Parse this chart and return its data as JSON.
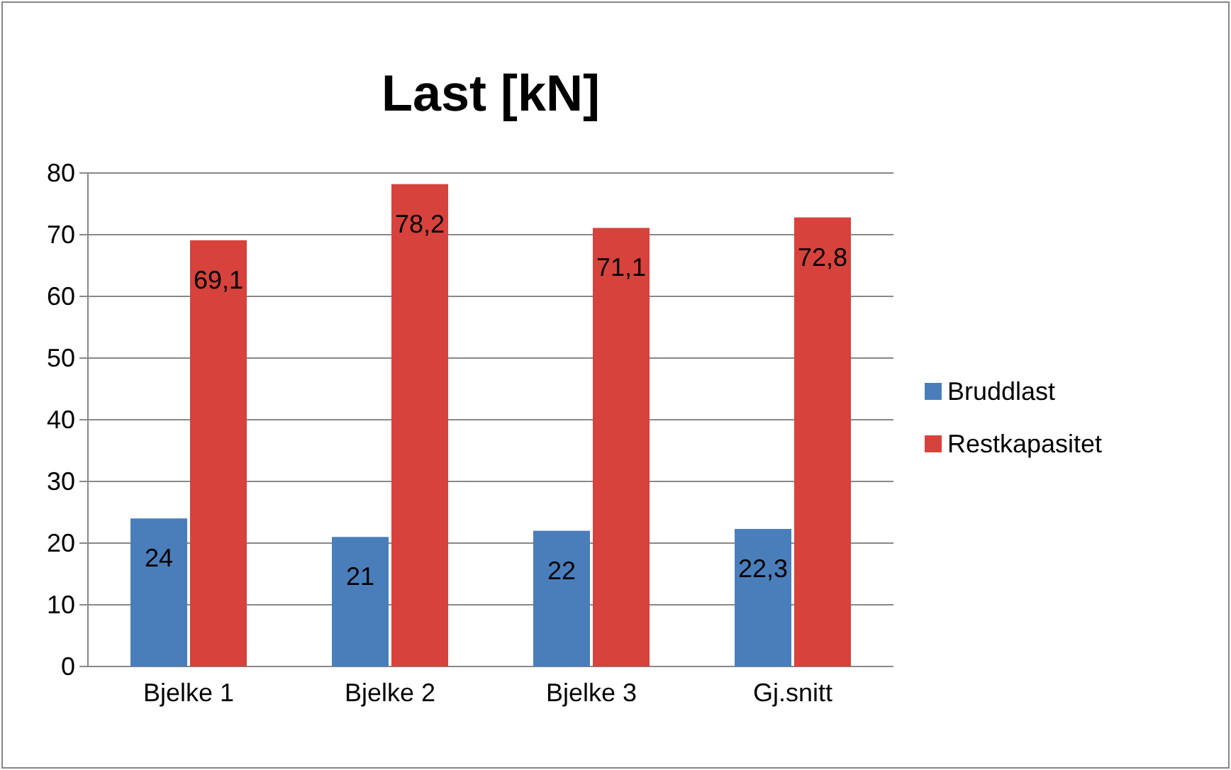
{
  "chart_data": {
    "type": "bar",
    "title": "Last [kN]",
    "categories": [
      "Bjelke 1",
      "Bjelke 2",
      "Bjelke 3",
      "Gj.snitt"
    ],
    "series": [
      {
        "name": "Bruddlast",
        "color": "#4a7ebb",
        "values": [
          24,
          21,
          22,
          22.3
        ],
        "value_labels": [
          "24",
          "21",
          "22",
          "22,3"
        ]
      },
      {
        "name": "Restkapasitet",
        "color": "#d7423c",
        "values": [
          69.1,
          78.2,
          71.1,
          72.8
        ],
        "value_labels": [
          "69,1",
          "78,2",
          "71,1",
          "72,8"
        ]
      }
    ],
    "ylim": [
      0,
      80
    ],
    "yticks": [
      0,
      10,
      20,
      30,
      40,
      50,
      60,
      70,
      80
    ],
    "grid": "y",
    "legend": "right"
  }
}
